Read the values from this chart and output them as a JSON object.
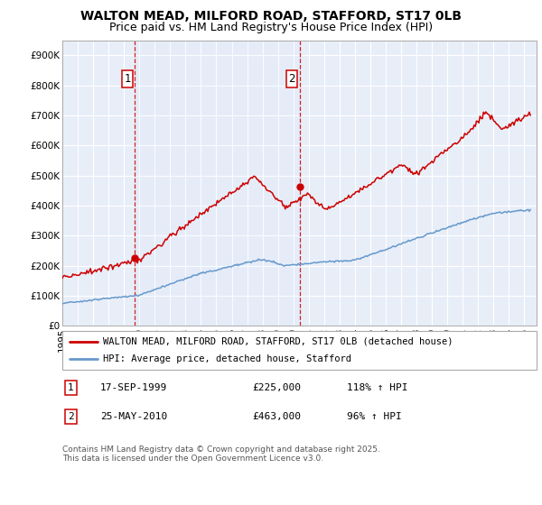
{
  "title": "WALTON MEAD, MILFORD ROAD, STAFFORD, ST17 0LB",
  "subtitle": "Price paid vs. HM Land Registry's House Price Index (HPI)",
  "ylim": [
    0,
    950000
  ],
  "yticks": [
    0,
    100000,
    200000,
    300000,
    400000,
    500000,
    600000,
    700000,
    800000,
    900000
  ],
  "ytick_labels": [
    "£0",
    "£100K",
    "£200K",
    "£300K",
    "£400K",
    "£500K",
    "£600K",
    "£700K",
    "£800K",
    "£900K"
  ],
  "xlim_start": 1995.0,
  "xlim_end": 2025.8,
  "xticks": [
    1995,
    1996,
    1997,
    1998,
    1999,
    2000,
    2001,
    2002,
    2003,
    2004,
    2005,
    2006,
    2007,
    2008,
    2009,
    2010,
    2011,
    2012,
    2013,
    2014,
    2015,
    2016,
    2017,
    2018,
    2019,
    2020,
    2021,
    2022,
    2023,
    2024,
    2025
  ],
  "background_color": "#e8eef8",
  "grid_color": "#ffffff",
  "house_color": "#cc0000",
  "hpi_color": "#6699cc",
  "vline_color": "#cc0000",
  "purchase1_x": 1999.72,
  "purchase1_y": 225000,
  "purchase2_x": 2010.4,
  "purchase2_y": 463000,
  "legend_house": "WALTON MEAD, MILFORD ROAD, STAFFORD, ST17 0LB (detached house)",
  "legend_hpi": "HPI: Average price, detached house, Stafford",
  "table_row1_num": "1",
  "table_row1_date": "17-SEP-1999",
  "table_row1_price": "£225,000",
  "table_row1_hpi": "118% ↑ HPI",
  "table_row2_num": "2",
  "table_row2_date": "25-MAY-2010",
  "table_row2_price": "£463,000",
  "table_row2_hpi": "96% ↑ HPI",
  "footer": "Contains HM Land Registry data © Crown copyright and database right 2025.\nThis data is licensed under the Open Government Licence v3.0.",
  "title_fontsize": 10,
  "subtitle_fontsize": 9,
  "tick_fontsize": 7.5,
  "legend_fontsize": 7.5,
  "table_fontsize": 8,
  "footer_fontsize": 6.5
}
